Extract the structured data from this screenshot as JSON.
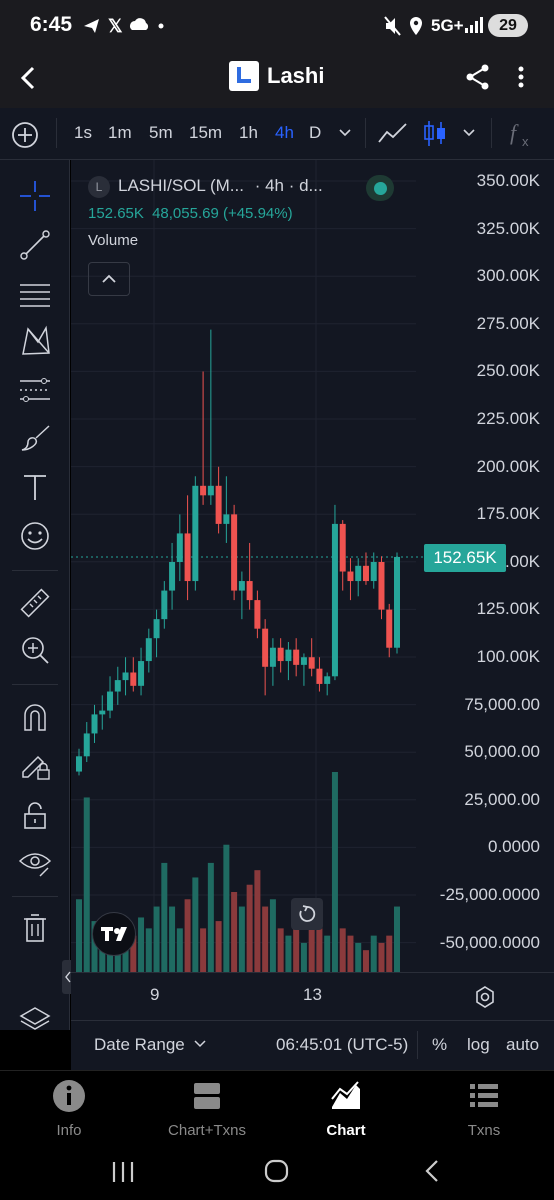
{
  "status": {
    "time": "6:45",
    "network": "5G+",
    "battery": "29"
  },
  "app": {
    "title": "Lashi"
  },
  "toolbar": {
    "timeframes": [
      "1s",
      "1m",
      "5m",
      "15m",
      "1h",
      "4h",
      "D"
    ],
    "active": "4h"
  },
  "legend": {
    "symbol": "LASHI/SOL (M...",
    "interval": "· 4h · d...",
    "l_badge": "L",
    "last": "152.65K",
    "change": "48,055.69 (+45.94%)",
    "volume_label": "Volume"
  },
  "y_axis": [
    "350.00K",
    "325.00K",
    "300.00K",
    "275.00K",
    "250.00K",
    "225.00K",
    "200.00K",
    "175.00K",
    "150.00K",
    "125.00K",
    "100.00K",
    "75,000.00",
    "50,000.00",
    "25,000.00",
    "0.0000",
    "-25,000.0000",
    "-50,000.0000"
  ],
  "price_tag": "152.65K",
  "x_axis": [
    "9",
    "13"
  ],
  "bottom": {
    "date_range": "Date Range",
    "time": "06:45:01 (UTC-5)",
    "percent": "%",
    "log": "log",
    "auto": "auto"
  },
  "nav": [
    {
      "label": "Info",
      "icon": "info-icon"
    },
    {
      "label": "Chart+Txns",
      "icon": "split-chart-icon"
    },
    {
      "label": "Chart",
      "icon": "chart-icon",
      "active": true
    },
    {
      "label": "Txns",
      "icon": "list-icon"
    }
  ],
  "colors": {
    "up": "#26a69a",
    "down": "#ef5350",
    "bg": "#131722"
  },
  "chart_data": {
    "type": "candlestick",
    "y_range": [
      -60000,
      350000
    ],
    "last_price": 152650,
    "candles": [
      [
        40000,
        52000,
        38000,
        48000
      ],
      [
        48000,
        66000,
        45000,
        60000
      ],
      [
        60000,
        75000,
        55000,
        70000
      ],
      [
        70000,
        80000,
        62000,
        72000
      ],
      [
        72000,
        90000,
        68000,
        82000
      ],
      [
        82000,
        95000,
        75000,
        88000
      ],
      [
        88000,
        100000,
        80000,
        92000
      ],
      [
        92000,
        100000,
        82000,
        85000
      ],
      [
        85000,
        105000,
        80000,
        98000
      ],
      [
        98000,
        115000,
        92000,
        110000
      ],
      [
        110000,
        125000,
        100000,
        120000
      ],
      [
        120000,
        140000,
        115000,
        135000
      ],
      [
        135000,
        160000,
        125000,
        150000
      ],
      [
        150000,
        175000,
        140000,
        165000
      ],
      [
        165000,
        185000,
        130000,
        140000
      ],
      [
        140000,
        195000,
        135000,
        190000
      ],
      [
        190000,
        250000,
        180000,
        185000
      ],
      [
        185000,
        272000,
        180000,
        190000
      ],
      [
        190000,
        200000,
        165000,
        170000
      ],
      [
        170000,
        195000,
        160000,
        175000
      ],
      [
        175000,
        180000,
        130000,
        135000
      ],
      [
        135000,
        145000,
        120000,
        140000
      ],
      [
        140000,
        160000,
        125000,
        130000
      ],
      [
        130000,
        135000,
        110000,
        115000
      ],
      [
        115000,
        120000,
        80000,
        95000
      ],
      [
        95000,
        110000,
        85000,
        105000
      ],
      [
        105000,
        110000,
        92000,
        98000
      ],
      [
        98000,
        108000,
        88000,
        104000
      ],
      [
        104000,
        110000,
        90000,
        96000
      ],
      [
        96000,
        102000,
        85000,
        100000
      ],
      [
        100000,
        110000,
        90000,
        94000
      ],
      [
        94000,
        100000,
        82000,
        86000
      ],
      [
        86000,
        92000,
        80000,
        90000
      ],
      [
        90000,
        180000,
        88000,
        170000
      ],
      [
        170000,
        172000,
        135000,
        145000
      ],
      [
        145000,
        152000,
        130000,
        140000
      ],
      [
        140000,
        152000,
        132000,
        148000
      ],
      [
        148000,
        155000,
        138000,
        140000
      ],
      [
        140000,
        155000,
        136000,
        150000
      ],
      [
        150000,
        153000,
        120000,
        125000
      ],
      [
        125000,
        128000,
        100000,
        105000
      ],
      [
        105000,
        155000,
        102000,
        152650
      ]
    ],
    "volume": [
      20,
      48,
      14,
      10,
      12,
      8,
      12,
      10,
      15,
      12,
      18,
      30,
      18,
      12,
      20,
      26,
      12,
      30,
      14,
      35,
      22,
      18,
      24,
      28,
      18,
      20,
      12,
      10,
      14,
      8,
      16,
      12,
      10,
      55,
      12,
      10,
      8,
      6,
      10,
      8,
      10,
      18
    ]
  }
}
